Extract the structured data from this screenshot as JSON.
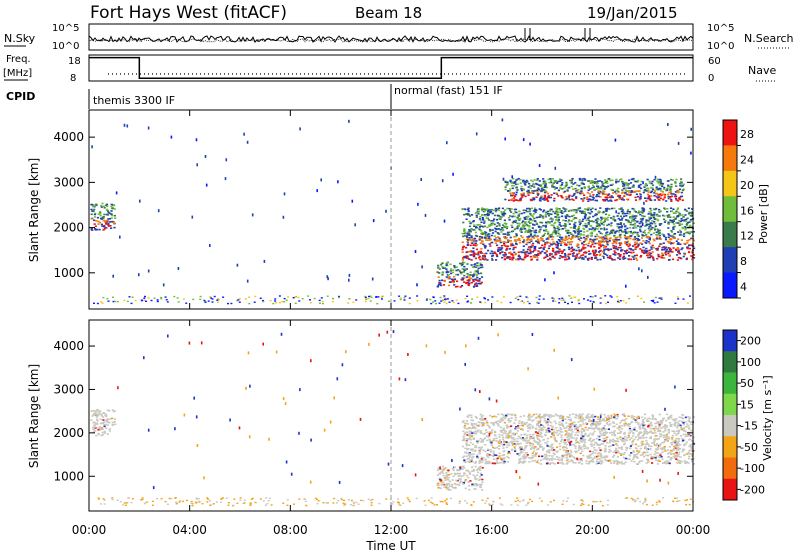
{
  "header": {
    "station": "Fort Hays West (fitACF)",
    "beam": "Beam 18",
    "date": "19/Jan/2015"
  },
  "top_panels": {
    "noise_label": "N.Sky",
    "noise_right_label": "N.Search",
    "noise_ticks": [
      "10^5",
      "10^0"
    ],
    "freq_label": "Freq.",
    "freq_unit": "[MHz]",
    "freq_ticks": [
      "18",
      "8"
    ],
    "nave_label": "Nave",
    "nave_ticks": [
      "60",
      "0"
    ],
    "cpid_label": "CPID",
    "cpid_segments": [
      {
        "label": "themis 3300 IF",
        "start_hour": 0,
        "end_hour": 12
      },
      {
        "label": "normal (fast) 151 IF",
        "start_hour": 12,
        "end_hour": 24
      }
    ]
  },
  "chart_data": [
    {
      "type": "heatmap",
      "name": "power",
      "xlabel": "Time UT",
      "ylabel": "Slant Range [km]",
      "xlim": [
        0,
        24
      ],
      "ylim": [
        200,
        4600
      ],
      "x_ticks": [
        "00:00",
        "04:00",
        "08:00",
        "12:00",
        "16:00",
        "20:00",
        "00:00"
      ],
      "y_ticks": [
        "1000",
        "2000",
        "3000",
        "4000"
      ],
      "colorbar_label": "Power [dB]",
      "colorbar_ticks": [
        "4",
        "8",
        "12",
        "16",
        "20",
        "24",
        "28"
      ],
      "colorbar_colors": [
        "#0a1aff",
        "#1f3fb5",
        "#3a7b4a",
        "#6fbd3b",
        "#f5c617",
        "#f57a0b",
        "#ef1212"
      ],
      "echo_regions": [
        {
          "t_start": 0.05,
          "t_end": 1.0,
          "r_min": 1950,
          "r_max": 2550
        },
        {
          "t_start": 13.8,
          "t_end": 15.6,
          "r_min": 700,
          "r_max": 1250
        },
        {
          "t_start": 14.8,
          "t_end": 24.0,
          "r_min": 1300,
          "r_max": 2450
        },
        {
          "t_start": 16.5,
          "t_end": 23.6,
          "r_min": 2600,
          "r_max": 3100
        }
      ]
    },
    {
      "type": "heatmap",
      "name": "velocity",
      "xlabel": "Time UT",
      "ylabel": "Slant Range [km]",
      "xlim": [
        0,
        24
      ],
      "ylim": [
        200,
        4600
      ],
      "x_ticks": [
        "00:00",
        "04:00",
        "08:00",
        "12:00",
        "16:00",
        "20:00",
        "00:00"
      ],
      "y_ticks": [
        "1000",
        "2000",
        "3000",
        "4000"
      ],
      "colorbar_label": "Velocity [m s⁻¹]",
      "colorbar_ticks": [
        "200",
        "100",
        "50",
        "15",
        "-15",
        "-50",
        "-100",
        "-200"
      ],
      "colorbar_colors": [
        "#1c33c9",
        "#2e7a3f",
        "#3bb53b",
        "#7fd84a",
        "#c9c9c2",
        "#f3a516",
        "#f26b0c",
        "#e81414"
      ],
      "echo_regions": [
        {
          "t_start": 0.05,
          "t_end": 1.0,
          "r_min": 1950,
          "r_max": 2550
        },
        {
          "t_start": 13.8,
          "t_end": 15.6,
          "r_min": 700,
          "r_max": 1250
        },
        {
          "t_start": 14.8,
          "t_end": 24.0,
          "r_min": 1300,
          "r_max": 2450
        }
      ]
    }
  ]
}
